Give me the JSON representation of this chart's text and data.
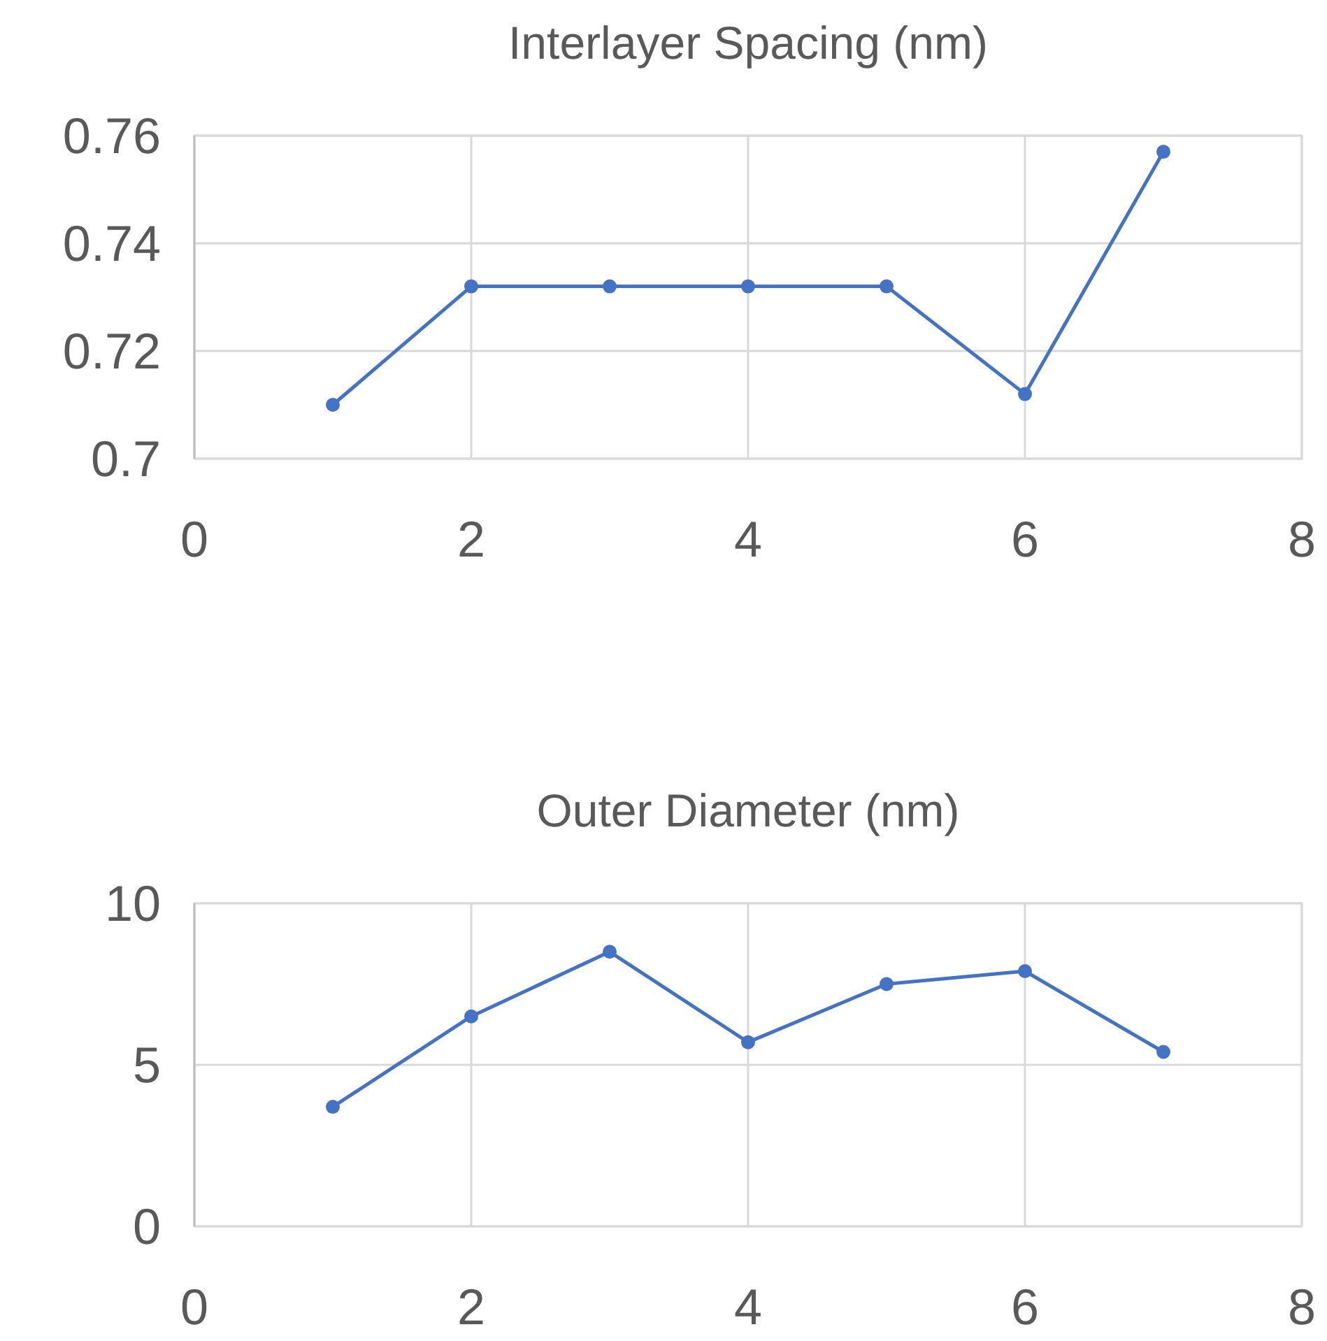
{
  "chart_data": [
    {
      "type": "line",
      "title": "Interlayer Spacing (nm)",
      "x": [
        1,
        2,
        3,
        4,
        5,
        6,
        7
      ],
      "series": [
        {
          "color": "#4472c4",
          "values": [
            0.71,
            0.732,
            0.732,
            0.732,
            0.732,
            0.712,
            0.757
          ]
        }
      ],
      "xlim": [
        0,
        8
      ],
      "xticks": [
        0,
        2,
        4,
        6,
        8
      ],
      "ylim": [
        0.7,
        0.76
      ],
      "yticks": [
        {
          "value": 0.7,
          "label": "0.7"
        },
        0.72,
        0.74,
        0.76
      ],
      "grid": true,
      "marker": "circle"
    },
    {
      "type": "line",
      "title": "Outer Diameter (nm)",
      "x": [
        1,
        2,
        3,
        4,
        5,
        6,
        7
      ],
      "series": [
        {
          "color": "#4472c4",
          "values": [
            3.7,
            6.5,
            8.5,
            5.7,
            7.5,
            7.9,
            5.4
          ]
        }
      ],
      "xlim": [
        0,
        8
      ],
      "xticks": [
        0,
        2,
        4,
        6,
        8
      ],
      "ylim": [
        0,
        10
      ],
      "yticks": [
        0,
        5,
        10
      ],
      "grid": true,
      "marker": "circle"
    }
  ]
}
